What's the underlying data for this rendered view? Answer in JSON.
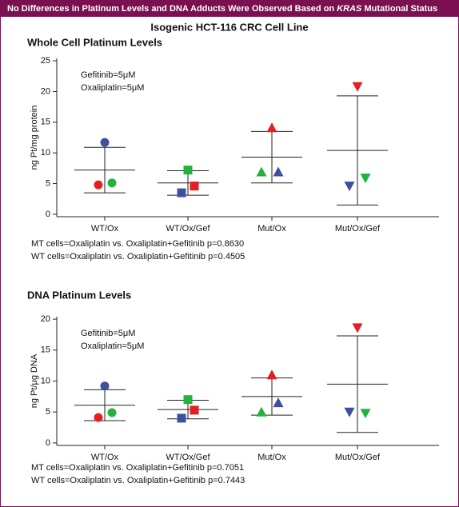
{
  "header": {
    "before": "No Differences in Platinum Levels and DNA Adducts Were Observed Based on",
    "gene": "KRAS",
    "after": "Mutational Status"
  },
  "figure_title": "Isogenic HCT-116 CRC Cell Line",
  "chart_data": [
    {
      "type": "scatter",
      "title": "Whole Cell Platinum Levels",
      "ylabel": "ng Pt/mg protein",
      "categories": [
        "WT/Ox",
        "WT/Ox/Gef",
        "Mut/Ox",
        "Mut/Ox/Gef"
      ],
      "markers": [
        "circle",
        "square",
        "triangle-up",
        "triangle-down"
      ],
      "series": [
        {
          "color": "#e31e24",
          "values": [
            4.8,
            4.6,
            14.1,
            20.8
          ]
        },
        {
          "color": "#22b33b",
          "values": [
            5.1,
            7.2,
            6.9,
            5.9
          ]
        },
        {
          "color": "#3f4fa0",
          "values": [
            11.7,
            3.5,
            6.9,
            4.6
          ]
        }
      ],
      "means": [
        7.2,
        5.1,
        9.3,
        10.4
      ],
      "sd": [
        3.7,
        2.0,
        4.2,
        8.9
      ],
      "ylim": [
        -0.4,
        25.4
      ],
      "yticks": [
        0,
        5,
        10,
        15,
        20,
        25
      ],
      "annotations": [
        "Gefitinib=5μM",
        "Oxaliplatin=5μM"
      ],
      "notes": [
        "MT cells=Oxaliplatin vs. Oxaliplatin+Gefitinib p=0.8630",
        "WT cells=Oxaliplatin vs. Oxaliplatin+Gefitinib p=0.4505"
      ]
    },
    {
      "type": "scatter",
      "title": "DNA Platinum Levels",
      "ylabel": "ng Pt/μg DNA",
      "categories": [
        "WT/Ox",
        "WT/Ox/Gef",
        "Mut/Ox",
        "Mut/Ox/Gef"
      ],
      "markers": [
        "circle",
        "square",
        "triangle-up",
        "triangle-down"
      ],
      "series": [
        {
          "color": "#e31e24",
          "values": [
            4.1,
            5.3,
            11.0,
            18.6
          ]
        },
        {
          "color": "#22b33b",
          "values": [
            4.9,
            7.0,
            5.0,
            4.8
          ]
        },
        {
          "color": "#3f4fa0",
          "values": [
            9.2,
            4.0,
            6.5,
            5.0
          ]
        }
      ],
      "means": [
        6.1,
        5.4,
        7.5,
        9.5
      ],
      "sd": [
        2.5,
        1.5,
        3.0,
        7.8
      ],
      "ylim": [
        -0.4,
        20.4
      ],
      "yticks": [
        0,
        5,
        10,
        15,
        20
      ],
      "annotations": [
        "Gefitinib=5μM",
        "Oxaliplatin=5μM"
      ],
      "notes": [
        "MT cells=Oxaliplatin vs. Oxaliplatin+Gefitinib p=0.7051",
        "WT cells=Oxaliplatin vs. Oxaliplatin+Gefitinib p=0.7443"
      ]
    }
  ]
}
